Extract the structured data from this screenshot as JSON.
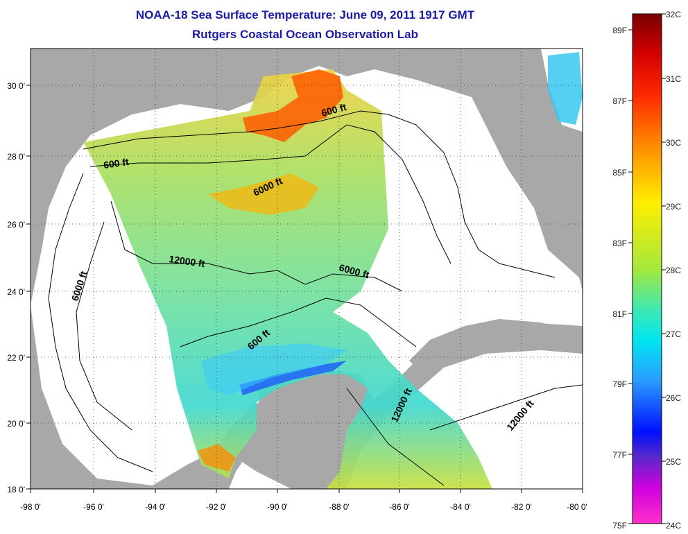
{
  "title": "NOAA-18 Sea Surface Temperature:  June 09, 2011 1917 GMT",
  "subtitle": "Rutgers Coastal Ocean Observation Lab",
  "x_ticks": [
    "-98 0'",
    "-96 0'",
    "-94 0'",
    "-92 0'",
    "-90 0'",
    "-88 0'",
    "-86 0'",
    "-84 0'",
    "-82 0'",
    "-80 0'"
  ],
  "y_ticks": [
    "18 0'",
    "20 0'",
    "22 0'",
    "24 0'",
    "26 0'",
    "28 0'",
    "30 0'"
  ],
  "colorbar_celsius": [
    "32C",
    "31C",
    "30C",
    "29C",
    "28C",
    "27C",
    "26C",
    "25C",
    "24C"
  ],
  "colorbar_fahrenheit": [
    "89F",
    "87F",
    "85F",
    "83F",
    "81F",
    "79F",
    "77F",
    "75F"
  ],
  "contour_labels": [
    {
      "text": "600 ft",
      "id": "c600a"
    },
    {
      "text": "600 ft",
      "id": "c600b"
    },
    {
      "text": "6000 ft",
      "id": "c6000a"
    },
    {
      "text": "6000 ft",
      "id": "c6000b"
    },
    {
      "text": "6000 ft",
      "id": "c6000c"
    },
    {
      "text": "12000 ft",
      "id": "c12000a"
    },
    {
      "text": "600 ft",
      "id": "c600c"
    },
    {
      "text": "12000 ft",
      "id": "c12000b"
    },
    {
      "text": "12000 ft",
      "id": "c12000c"
    }
  ],
  "colors": {
    "land": "#a8a8a8",
    "ocean": "#ffffff",
    "title": "#1a1aa8"
  }
}
